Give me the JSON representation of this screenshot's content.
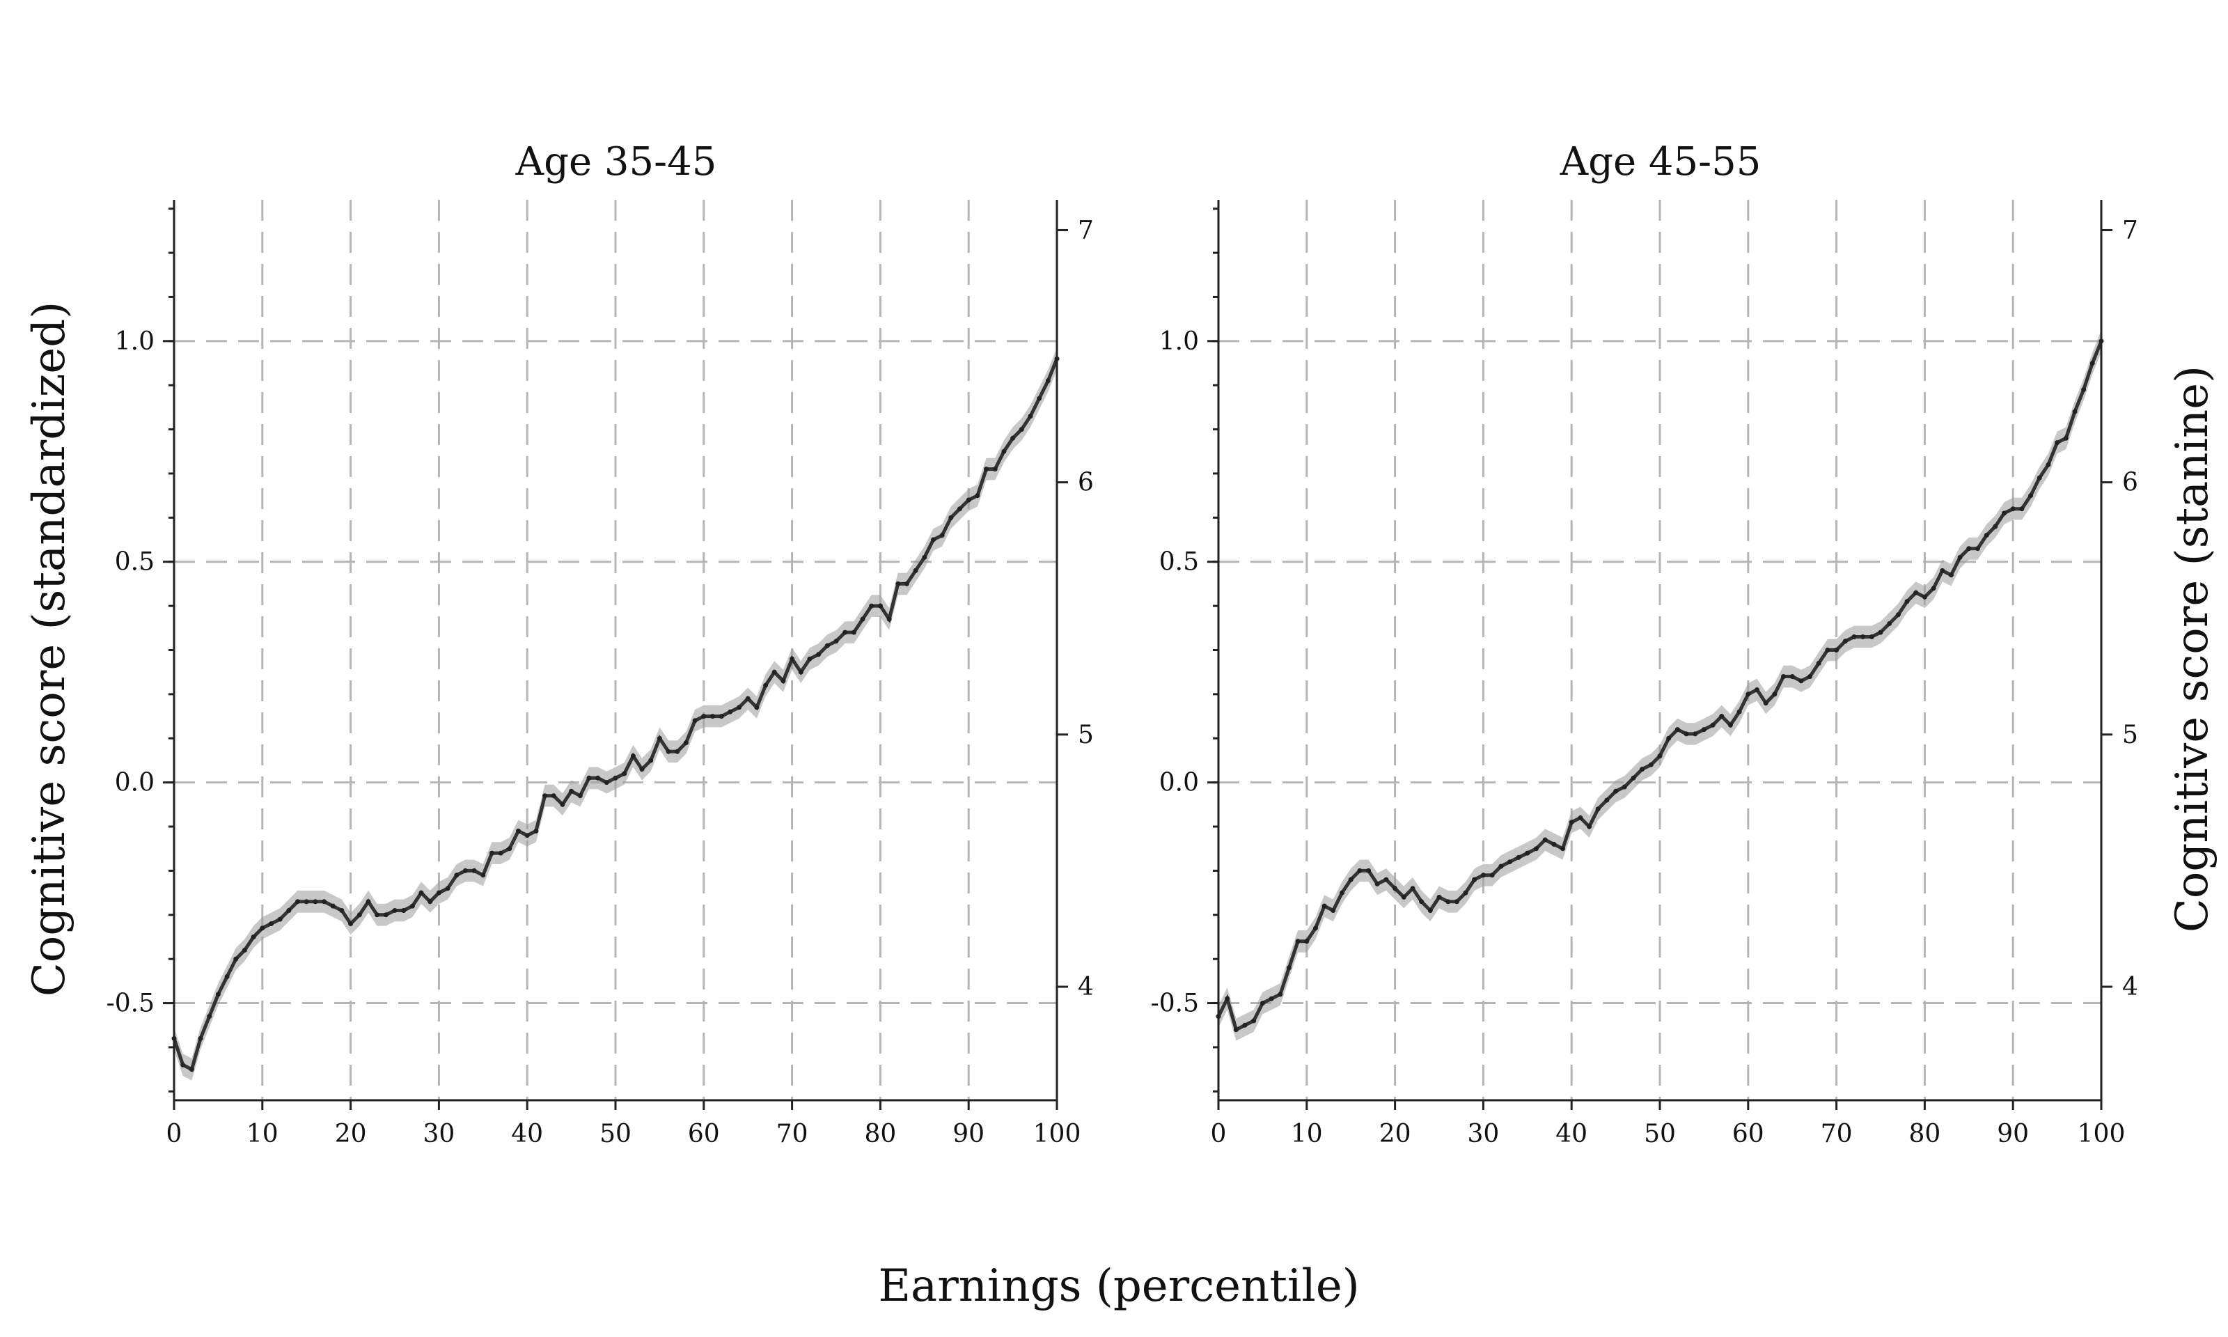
{
  "figure": {
    "xlabel": "Earnings (percentile)",
    "ylabel_left": "Cognitive score (standardized)",
    "ylabel_right": "Cognitive score (stanine)"
  },
  "colors": {
    "line": "#333333",
    "band": "#9a9a9a",
    "grid": "#b5b5b5"
  },
  "chart_data": [
    {
      "type": "line",
      "title": "Age 35-45",
      "x_ticks": [
        "0",
        "10",
        "20",
        "30",
        "40",
        "50",
        "60",
        "70",
        "80",
        "90",
        "100"
      ],
      "y_ticks_left": [
        "-0.5",
        "0.0",
        "0.5",
        "1.0"
      ],
      "y_ticks_right": [
        "4",
        "5",
        "6",
        "7"
      ],
      "xlim": [
        0,
        100
      ],
      "ylim": [
        -0.72,
        1.32
      ],
      "ylim_right": [
        3.55,
        7.12
      ],
      "grid": true,
      "series": [
        {
          "values": [
            -0.58,
            -0.64,
            -0.65,
            -0.58,
            -0.53,
            -0.48,
            -0.44,
            -0.4,
            -0.38,
            -0.35,
            -0.33,
            -0.32,
            -0.31,
            -0.29,
            -0.27,
            -0.27,
            -0.27,
            -0.27,
            -0.28,
            -0.29,
            -0.32,
            -0.3,
            -0.27,
            -0.3,
            -0.3,
            -0.29,
            -0.29,
            -0.28,
            -0.25,
            -0.27,
            -0.25,
            -0.24,
            -0.21,
            -0.2,
            -0.2,
            -0.21,
            -0.16,
            -0.16,
            -0.15,
            -0.11,
            -0.12,
            -0.11,
            -0.03,
            -0.03,
            -0.05,
            -0.02,
            -0.03,
            0.01,
            0.01,
            0.0,
            0.01,
            0.02,
            0.06,
            0.03,
            0.05,
            0.1,
            0.07,
            0.07,
            0.09,
            0.14,
            0.15,
            0.15,
            0.15,
            0.16,
            0.17,
            0.19,
            0.17,
            0.22,
            0.25,
            0.23,
            0.28,
            0.25,
            0.28,
            0.29,
            0.31,
            0.32,
            0.34,
            0.34,
            0.37,
            0.4,
            0.4,
            0.37,
            0.45,
            0.45,
            0.48,
            0.51,
            0.55,
            0.56,
            0.6,
            0.62,
            0.64,
            0.65,
            0.71,
            0.71,
            0.75,
            0.78,
            0.8,
            0.83,
            0.87,
            0.91,
            0.96
          ],
          "ci": 0.025
        }
      ]
    },
    {
      "type": "line",
      "title": "Age 45-55",
      "x_ticks": [
        "0",
        "10",
        "20",
        "30",
        "40",
        "50",
        "60",
        "70",
        "80",
        "90",
        "100"
      ],
      "y_ticks_left": [
        "-0.5",
        "0.0",
        "0.5",
        "1.0"
      ],
      "y_ticks_right": [
        "4",
        "5",
        "6",
        "7"
      ],
      "xlim": [
        0,
        100
      ],
      "ylim": [
        -0.72,
        1.32
      ],
      "ylim_right": [
        3.55,
        7.12
      ],
      "grid": true,
      "series": [
        {
          "values": [
            -0.53,
            -0.49,
            -0.56,
            -0.55,
            -0.54,
            -0.5,
            -0.49,
            -0.48,
            -0.42,
            -0.36,
            -0.36,
            -0.33,
            -0.28,
            -0.29,
            -0.25,
            -0.22,
            -0.2,
            -0.2,
            -0.23,
            -0.22,
            -0.24,
            -0.26,
            -0.24,
            -0.27,
            -0.29,
            -0.26,
            -0.27,
            -0.27,
            -0.25,
            -0.22,
            -0.21,
            -0.21,
            -0.19,
            -0.18,
            -0.17,
            -0.16,
            -0.15,
            -0.13,
            -0.14,
            -0.15,
            -0.09,
            -0.08,
            -0.1,
            -0.06,
            -0.04,
            -0.02,
            -0.01,
            0.01,
            0.03,
            0.04,
            0.06,
            0.1,
            0.12,
            0.11,
            0.11,
            0.12,
            0.13,
            0.15,
            0.13,
            0.16,
            0.2,
            0.21,
            0.18,
            0.2,
            0.24,
            0.24,
            0.23,
            0.24,
            0.27,
            0.3,
            0.3,
            0.32,
            0.33,
            0.33,
            0.33,
            0.34,
            0.36,
            0.38,
            0.41,
            0.43,
            0.42,
            0.44,
            0.48,
            0.47,
            0.51,
            0.53,
            0.53,
            0.56,
            0.58,
            0.61,
            0.62,
            0.62,
            0.65,
            0.69,
            0.72,
            0.77,
            0.78,
            0.84,
            0.89,
            0.95,
            1.0
          ],
          "ci": 0.025
        }
      ]
    }
  ]
}
